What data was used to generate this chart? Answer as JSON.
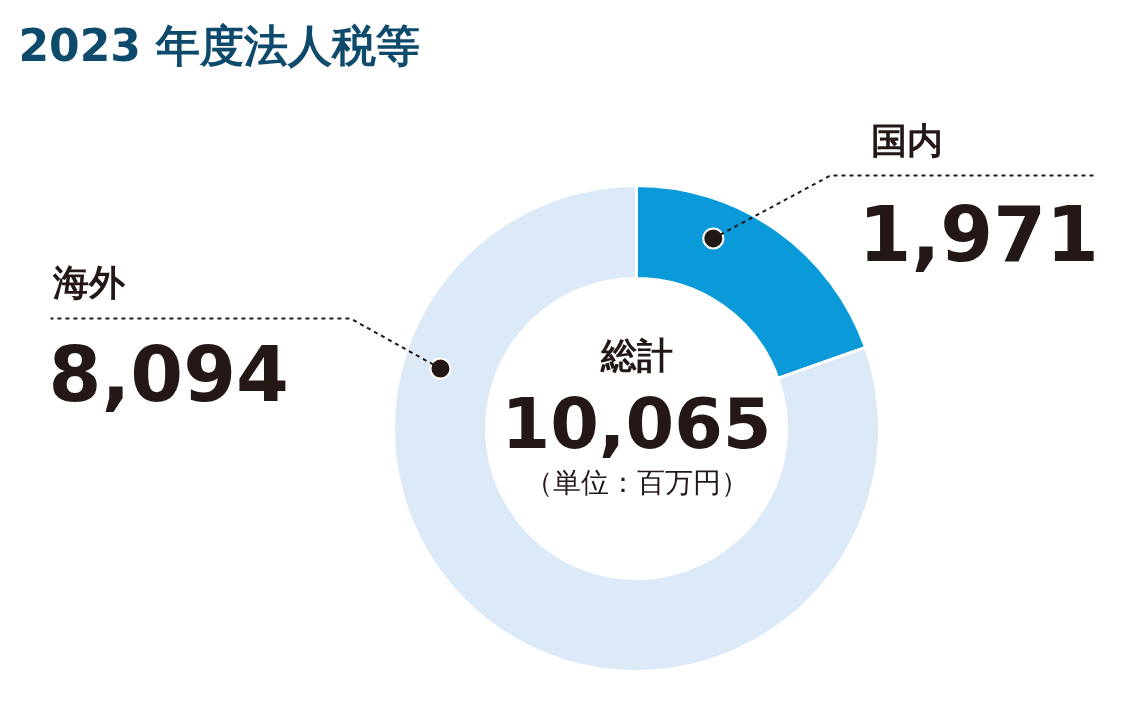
{
  "chart_data": {
    "type": "donut",
    "title": "2023 年度法人税等",
    "categories": [
      "国内",
      "海外"
    ],
    "values": [
      1971,
      8094
    ],
    "colors": [
      "#0b9ad9",
      "#dce9f6"
    ],
    "value_labels": [
      "1,971",
      "8,094"
    ],
    "annotations": [
      "総計",
      "10,065",
      "（単位：百万円）"
    ]
  }
}
